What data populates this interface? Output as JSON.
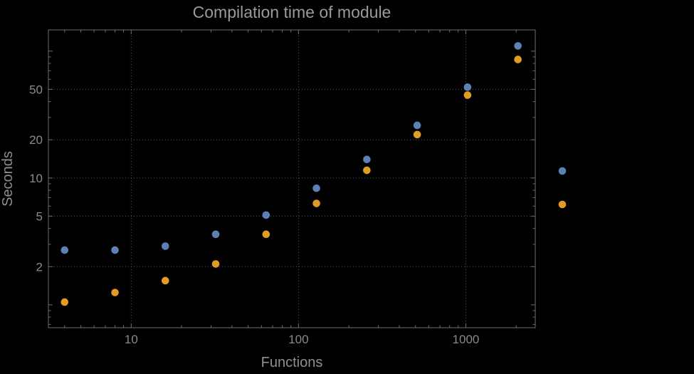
{
  "colors": {
    "background": "#000000",
    "frame": "#6e6e6e",
    "grid": "#5a5a5a",
    "title_text": "#9a9a9a",
    "axis_label_text": "#8f8f8f",
    "tick_label_text": "#8a8a8a",
    "series_blue": "#5e81b5",
    "series_orange": "#e19c24"
  },
  "chart_data": {
    "type": "scatter",
    "title": "Compilation time of module",
    "xlabel": "Functions",
    "ylabel": "Seconds",
    "x_scale": "log",
    "y_scale": "log",
    "grid": "dotted",
    "legend_position": "right-outside",
    "x_ticks": [
      10,
      100,
      1000
    ],
    "y_ticks": [
      2,
      5,
      10,
      20,
      50
    ],
    "x_range": [
      3.2,
      2600
    ],
    "y_range": [
      0.66,
      147
    ],
    "x": [
      4,
      8,
      16,
      32,
      64,
      128,
      256,
      512,
      1024,
      2048
    ],
    "series": [
      {
        "name": "blue",
        "color": "#5e81b5",
        "values": [
          2.7,
          2.7,
          2.9,
          3.6,
          5.1,
          8.3,
          14,
          26,
          52,
          110
        ]
      },
      {
        "name": "orange",
        "color": "#e19c24",
        "values": [
          1.05,
          1.25,
          1.55,
          2.1,
          3.6,
          6.3,
          11.5,
          22,
          45,
          86
        ]
      }
    ]
  }
}
